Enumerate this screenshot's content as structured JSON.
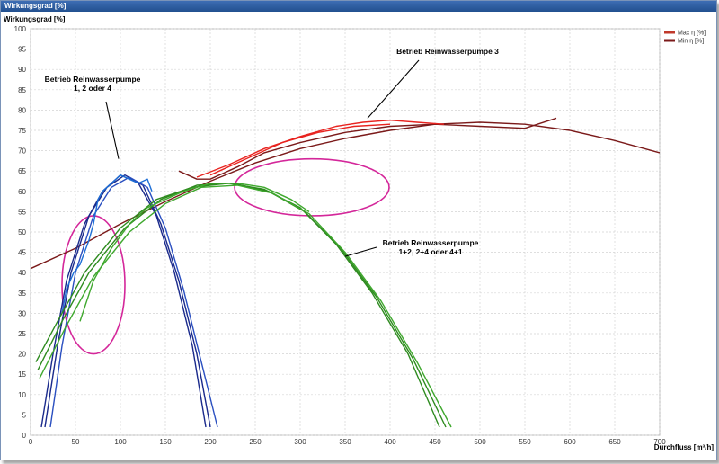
{
  "window": {
    "title": "Wirkungsgrad [%]"
  },
  "chart_data": {
    "type": "line",
    "ylabel": "Wirkungsgrad [%]",
    "xlabel": "Durchfluss [m³/h]",
    "xlim": [
      0,
      700
    ],
    "ylim": [
      0,
      100
    ],
    "xticks": [
      0,
      50,
      100,
      150,
      200,
      250,
      300,
      350,
      400,
      450,
      500,
      550,
      600,
      650,
      700
    ],
    "yticks": [
      0,
      5,
      10,
      15,
      20,
      25,
      30,
      35,
      40,
      45,
      50,
      55,
      60,
      65,
      70,
      75,
      80,
      85,
      90,
      95,
      100
    ],
    "grid": true,
    "legend": {
      "placement": "top-right",
      "entries": [
        {
          "label": "Max η [%]",
          "color": "#c0392b"
        },
        {
          "label": "Min η [%]",
          "color": "#7b1a1a"
        }
      ]
    },
    "annotations": [
      {
        "lines": [
          "Betrieb Reinwasserpumpe",
          "1, 2 oder 4"
        ]
      },
      {
        "lines": [
          "Betrieb Reinwasserpumpe 3"
        ]
      },
      {
        "lines": [
          "Betrieb Reinwasserpumpe",
          "1+2, 2+4 oder 4+1"
        ]
      }
    ],
    "series": [
      {
        "color": "#7b1a1a",
        "values": [
          [
            0,
            41
          ],
          [
            50,
            46
          ],
          [
            100,
            52
          ],
          [
            150,
            57.5
          ],
          [
            200,
            62.5
          ],
          [
            250,
            67
          ],
          [
            300,
            70.5
          ],
          [
            350,
            73
          ],
          [
            400,
            75
          ],
          [
            450,
            76.5
          ],
          [
            500,
            77
          ],
          [
            550,
            76.5
          ],
          [
            600,
            75
          ],
          [
            650,
            72.5
          ],
          [
            700,
            69.5
          ]
        ]
      },
      {
        "color": "#7b1a1a",
        "values": [
          [
            165,
            65
          ],
          [
            185,
            63
          ],
          [
            200,
            63
          ],
          [
            230,
            66
          ],
          [
            260,
            69.5
          ],
          [
            300,
            72
          ],
          [
            350,
            74.5
          ],
          [
            400,
            76
          ],
          [
            450,
            76.5
          ],
          [
            500,
            76
          ],
          [
            550,
            75.5
          ],
          [
            585,
            78
          ]
        ]
      },
      {
        "color": "#e8231f",
        "values": [
          [
            185,
            63.5
          ],
          [
            220,
            66.5
          ],
          [
            260,
            70.5
          ],
          [
            300,
            73.5
          ],
          [
            340,
            76
          ],
          [
            370,
            77
          ],
          [
            400,
            77.5
          ],
          [
            430,
            77
          ],
          [
            460,
            76.5
          ]
        ]
      },
      {
        "color": "#e8231f",
        "values": [
          [
            200,
            64
          ],
          [
            240,
            68
          ],
          [
            280,
            72
          ],
          [
            320,
            74.5
          ],
          [
            360,
            76
          ],
          [
            400,
            76.5
          ]
        ]
      },
      {
        "color": "#1a2a8c",
        "values": [
          [
            12,
            2
          ],
          [
            25,
            20
          ],
          [
            40,
            38
          ],
          [
            60,
            52
          ],
          [
            80,
            60
          ],
          [
            100,
            64
          ],
          [
            120,
            62
          ],
          [
            140,
            54
          ],
          [
            160,
            40
          ],
          [
            180,
            22
          ],
          [
            195,
            2
          ]
        ]
      },
      {
        "color": "#1a2a8c",
        "values": [
          [
            16,
            2
          ],
          [
            30,
            22
          ],
          [
            45,
            40
          ],
          [
            65,
            54
          ],
          [
            85,
            61
          ],
          [
            105,
            64
          ],
          [
            125,
            61.5
          ],
          [
            145,
            52
          ],
          [
            165,
            38
          ],
          [
            185,
            20
          ],
          [
            200,
            2
          ]
        ]
      },
      {
        "color": "#2a4fc0",
        "values": [
          [
            22,
            2
          ],
          [
            35,
            22
          ],
          [
            50,
            40
          ],
          [
            70,
            54
          ],
          [
            90,
            61
          ],
          [
            110,
            63.5
          ],
          [
            130,
            61
          ],
          [
            150,
            51
          ],
          [
            170,
            36
          ],
          [
            190,
            18
          ],
          [
            208,
            2
          ]
        ]
      },
      {
        "color": "#1e6fd6",
        "values": [
          [
            35,
            30
          ],
          [
            40,
            36
          ],
          [
            48,
            40
          ],
          [
            55,
            42
          ],
          [
            60,
            45
          ],
          [
            65,
            48
          ],
          [
            70,
            52
          ],
          [
            75,
            58
          ],
          [
            80,
            60
          ],
          [
            90,
            62
          ],
          [
            100,
            64
          ],
          [
            110,
            63
          ],
          [
            120,
            62
          ],
          [
            130,
            63
          ],
          [
            135,
            60
          ]
        ]
      },
      {
        "color": "#2e8b1f",
        "values": [
          [
            6,
            18
          ],
          [
            30,
            28
          ],
          [
            60,
            40
          ],
          [
            100,
            51
          ],
          [
            140,
            58
          ],
          [
            180,
            61
          ],
          [
            220,
            62
          ],
          [
            260,
            60.5
          ],
          [
            300,
            56
          ],
          [
            340,
            47
          ],
          [
            380,
            35
          ],
          [
            420,
            20
          ],
          [
            455,
            2
          ]
        ]
      },
      {
        "color": "#2e8b1f",
        "values": [
          [
            8,
            16
          ],
          [
            35,
            28
          ],
          [
            65,
            40
          ],
          [
            105,
            51
          ],
          [
            145,
            58
          ],
          [
            185,
            61.5
          ],
          [
            225,
            62
          ],
          [
            265,
            60
          ],
          [
            305,
            55
          ],
          [
            345,
            46
          ],
          [
            385,
            34
          ],
          [
            425,
            19
          ],
          [
            462,
            2
          ]
        ]
      },
      {
        "color": "#3fa82e",
        "values": [
          [
            10,
            14
          ],
          [
            40,
            27
          ],
          [
            70,
            39
          ],
          [
            110,
            50
          ],
          [
            150,
            57
          ],
          [
            190,
            61
          ],
          [
            230,
            61.5
          ],
          [
            270,
            59.5
          ],
          [
            310,
            54.5
          ],
          [
            350,
            45
          ],
          [
            390,
            33
          ],
          [
            430,
            18
          ],
          [
            468,
            2
          ]
        ]
      },
      {
        "color": "#3fa82e",
        "values": [
          [
            55,
            28
          ],
          [
            70,
            38
          ],
          [
            90,
            46
          ],
          [
            110,
            52
          ],
          [
            130,
            56
          ],
          [
            150,
            58
          ],
          [
            170,
            60
          ],
          [
            200,
            62
          ],
          [
            230,
            62
          ],
          [
            260,
            61
          ],
          [
            290,
            58
          ],
          [
            310,
            55
          ]
        ]
      }
    ],
    "ellipses": [
      {
        "color": "#d4279a",
        "center": [
          70,
          37
        ],
        "radii": [
          35,
          17
        ]
      },
      {
        "color": "#d4279a",
        "center": [
          313,
          61
        ],
        "radii": [
          86,
          7
        ]
      }
    ]
  }
}
